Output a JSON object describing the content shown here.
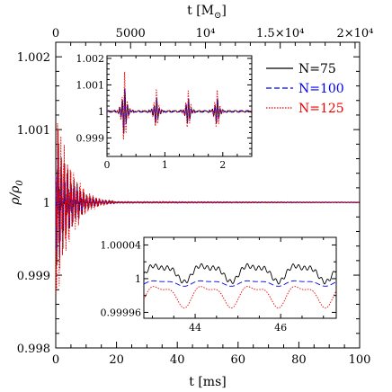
{
  "chart_data": [
    {
      "type": "line",
      "xlabel": "t [ms]",
      "ylabel": "ρ/ρ",
      "ylabel_sub": "0",
      "top_axis": {
        "label_main": "t [M",
        "label_sub": "⊙",
        "label_end": "]",
        "ticks": [
          "0",
          "5000",
          "10⁴",
          "1.5×10⁴",
          "2×10⁴"
        ]
      },
      "xlim": [
        0,
        100
      ],
      "ylim": [
        0.998,
        1.0022
      ],
      "xticks": [
        "0",
        "20",
        "40",
        "60",
        "80",
        "100"
      ],
      "yticks": [
        "0.998",
        "0.999",
        "1",
        "1.001",
        "1.002"
      ],
      "series": [
        {
          "name": "N=75",
          "color": "#000000",
          "dash": "solid"
        },
        {
          "name": "N=100",
          "color": "#0000ee",
          "dash": "dashed"
        },
        {
          "name": "N=125",
          "color": "#ee0000",
          "dash": "dotted"
        }
      ],
      "main_trace": {
        "description_of_shape": "damped oscillation around 1",
        "decay_envelope": {
          "t_ms": [
            0,
            2,
            5,
            10,
            15,
            20,
            100
          ],
          "amplitude": [
            0.0016,
            0.0009,
            0.0005,
            0.00015,
            5e-05,
            1e-05,
            5e-06
          ]
        }
      }
    },
    {
      "type": "line",
      "inset": "upper",
      "xlim": [
        0,
        2.5
      ],
      "ylim": [
        0.9983,
        1.0021
      ],
      "xticks": [
        "0",
        "1",
        "2"
      ],
      "yticks": [
        "0.999",
        "1",
        "1.001",
        "1.002"
      ],
      "bursts_at_t": [
        0.3,
        0.85,
        1.4,
        1.9
      ],
      "burst_peaks": {
        "N=75": 0.0011,
        "N=100": 0.0011,
        "N=125": 0.0017
      }
    },
    {
      "type": "line",
      "inset": "lower",
      "xlim": [
        42.8,
        47.3
      ],
      "ylim": [
        0.999953,
        1.000049
      ],
      "xticks": [
        "44",
        "46"
      ],
      "yticks": [
        "0.99996",
        "1",
        "1.00004"
      ],
      "series": [
        {
          "name": "N=75",
          "offset": 8e-06,
          "amplitude": 1.2e-05,
          "period_ms": 1.1
        },
        {
          "name": "N=100",
          "offset": -5e-06,
          "amplitude": 4e-06,
          "period_ms": 1.1
        },
        {
          "name": "N=125",
          "offset": -1.9e-05,
          "amplitude": 1.6e-05,
          "period_ms": 1.1
        }
      ]
    }
  ]
}
